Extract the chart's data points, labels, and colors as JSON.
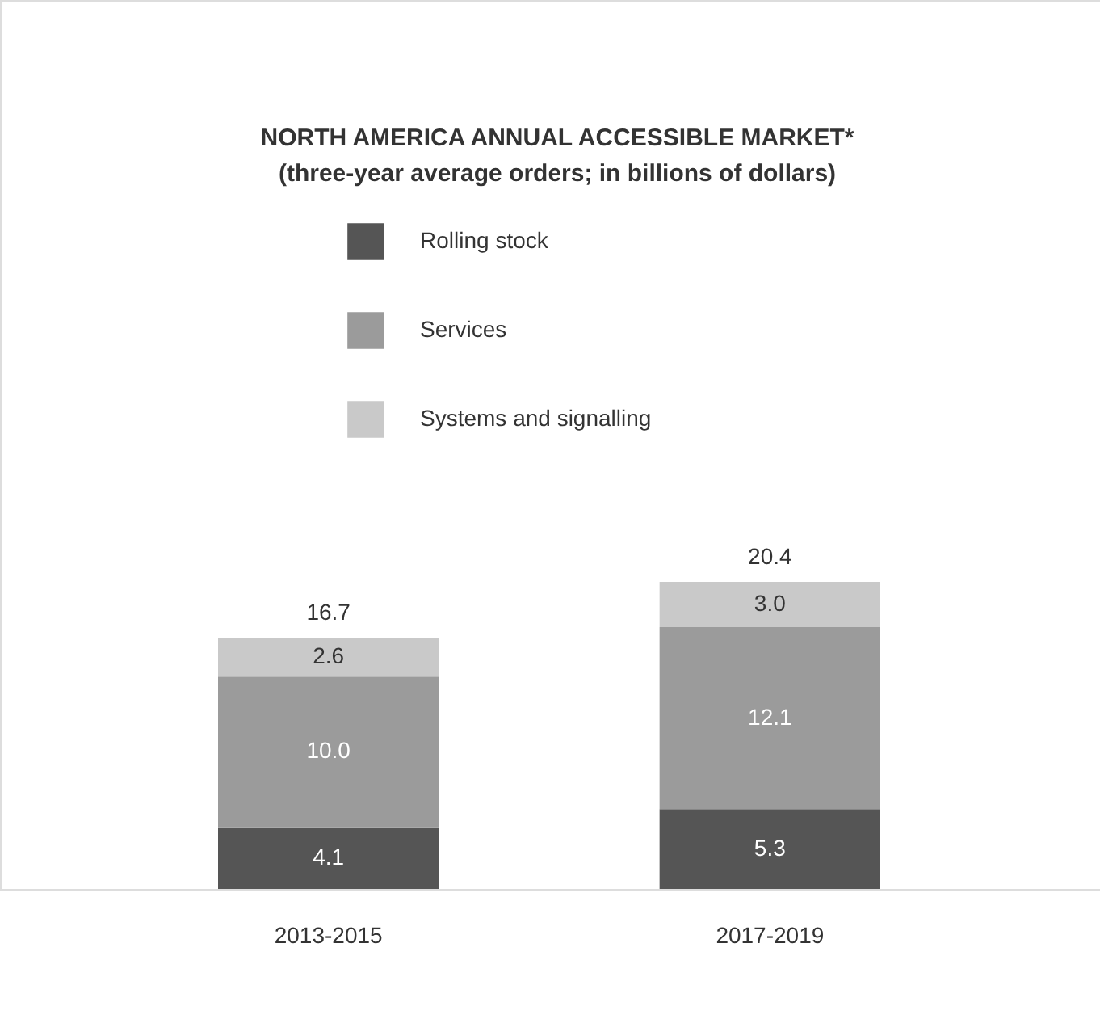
{
  "chart_data": {
    "type": "bar",
    "title": "NORTH AMERICA ANNUAL ACCESSIBLE MARKET*",
    "subtitle": "(three-year average orders; in billions of dollars)",
    "categories": [
      "2013-2015",
      "2017-2019"
    ],
    "stacked": true,
    "totals": [
      "16.7",
      "20.4"
    ],
    "legend": "top",
    "grid": false,
    "series": [
      {
        "name": "Rolling stock",
        "color": "#555555",
        "values": [
          4.1,
          5.3
        ],
        "value_labels": [
          "4.1",
          "5.3"
        ]
      },
      {
        "name": "Services",
        "color": "#9b9b9b",
        "values": [
          10.0,
          12.1
        ],
        "value_labels": [
          "10.0",
          "12.1"
        ]
      },
      {
        "name": "Systems and signalling",
        "color": "#c9c9c9",
        "values": [
          2.6,
          3.0
        ],
        "value_labels": [
          "2.6",
          "3.0"
        ]
      }
    ]
  }
}
